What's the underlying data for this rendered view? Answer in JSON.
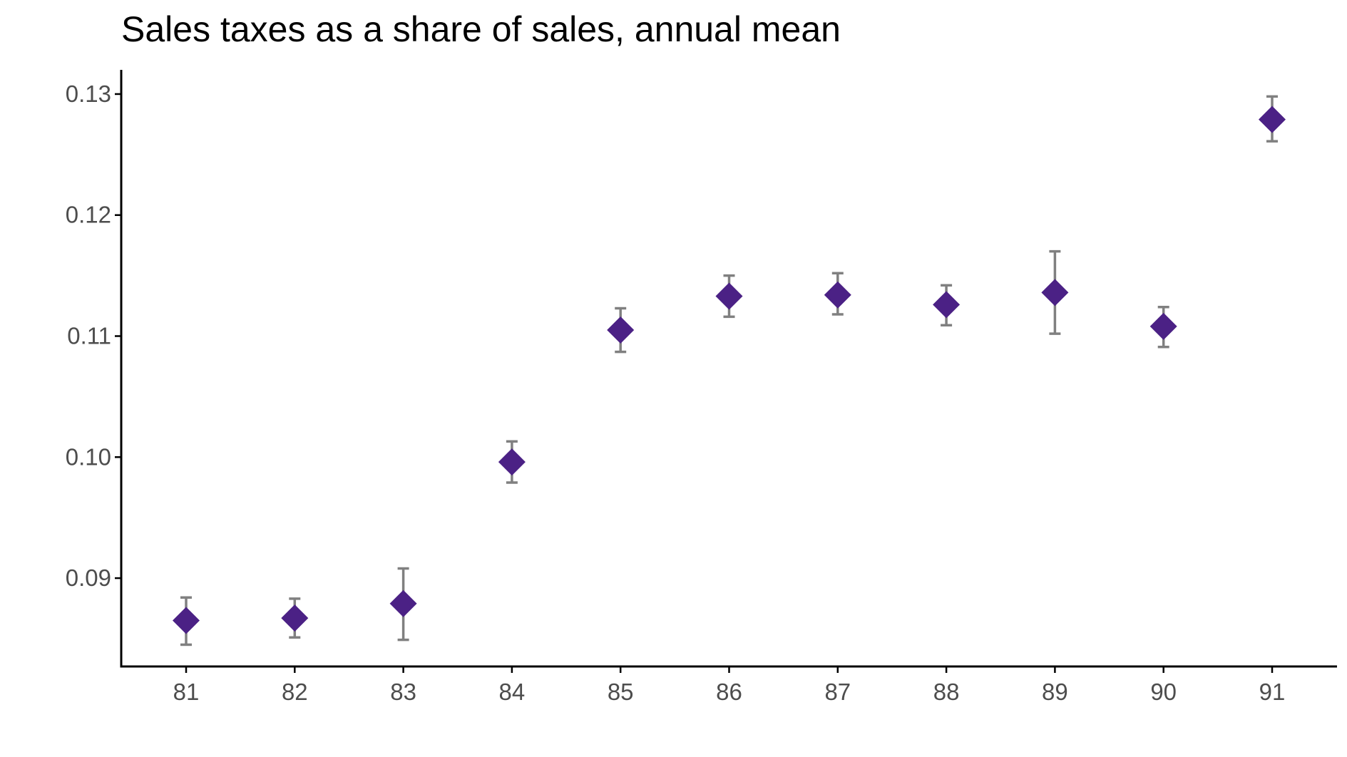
{
  "chart_data": {
    "type": "scatter",
    "title": "Sales taxes as a share of sales, annual mean",
    "xlabel": "",
    "ylabel": "",
    "x": [
      "81",
      "82",
      "83",
      "84",
      "85",
      "86",
      "87",
      "88",
      "89",
      "90",
      "91"
    ],
    "y": [
      0.0865,
      0.0867,
      0.0879,
      0.0996,
      0.1105,
      0.1133,
      0.1134,
      0.1126,
      0.1136,
      0.1108,
      0.1279
    ],
    "error_low": [
      0.0845,
      0.0851,
      0.0849,
      0.0979,
      0.1087,
      0.1116,
      0.1118,
      0.1109,
      0.1102,
      0.1091,
      0.1261
    ],
    "error_high": [
      0.0884,
      0.0883,
      0.0908,
      0.1013,
      0.1123,
      0.115,
      0.1152,
      0.1142,
      0.117,
      0.1124,
      0.1298
    ],
    "yticks": [
      "0.09",
      "0.10",
      "0.11",
      "0.12",
      "0.13"
    ],
    "ylim": [
      0.0827,
      0.132
    ],
    "grid": false,
    "legend": "none",
    "marker": "diamond",
    "colors": {
      "marker": "#4b2185",
      "errorbar": "#808080",
      "axis": "#000000",
      "tick_text": "#4d4d4d"
    }
  }
}
